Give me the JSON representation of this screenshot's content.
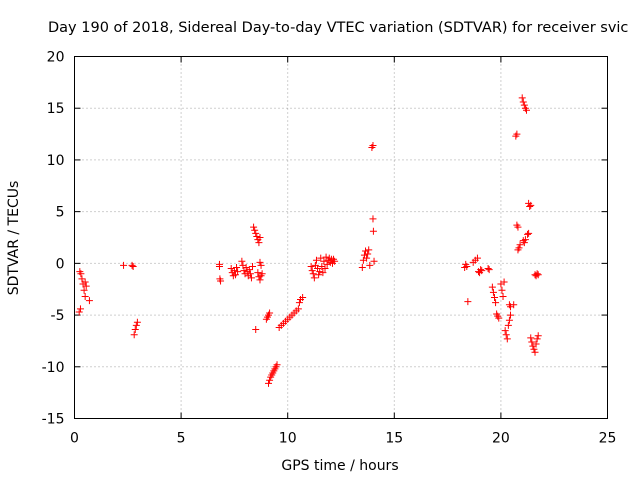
{
  "chart_data": {
    "type": "scatter",
    "title": "Day 190 of 2018, Sidereal Day-to-day VTEC variation (SDTVAR) for receiver svic",
    "xlabel": "GPS time / hours",
    "ylabel": "SDTVAR / TECUs",
    "xlim": [
      0,
      25
    ],
    "ylim": [
      -15,
      20
    ],
    "xticks": [
      0,
      5,
      10,
      15,
      20,
      25
    ],
    "yticks": [
      -15,
      -10,
      -5,
      0,
      5,
      10,
      15,
      20
    ],
    "xtick_labels": [
      "0",
      "5",
      "10",
      "15",
      "20",
      "25"
    ],
    "ytick_labels": [
      "-15",
      "-10",
      "-5",
      "0",
      "5",
      "10",
      "15",
      "20"
    ],
    "grid": true,
    "marker": "+",
    "color": "#ff0000",
    "series": [
      {
        "name": "SDTVAR",
        "tracks": [
          [
            0.25,
            -0.8
          ],
          [
            0.3,
            -1.0
          ],
          [
            0.35,
            -1.5
          ],
          [
            0.4,
            -2.0
          ],
          [
            0.45,
            -2.6
          ],
          [
            0.5,
            -3.2
          ],
          [
            0.22,
            -4.7
          ],
          [
            0.28,
            -4.4
          ],
          [
            0.5,
            -1.8
          ],
          [
            0.55,
            -2.2
          ],
          [
            0.7,
            -3.6
          ],
          [
            2.3,
            -0.2
          ],
          [
            2.7,
            -0.2
          ],
          [
            2.75,
            -0.3
          ],
          [
            2.8,
            -6.9
          ],
          [
            2.85,
            -6.4
          ],
          [
            2.9,
            -6.0
          ],
          [
            2.95,
            -5.7
          ],
          [
            6.8,
            -0.1
          ],
          [
            6.8,
            -0.3
          ],
          [
            6.82,
            -1.5
          ],
          [
            6.85,
            -1.7
          ],
          [
            7.35,
            -0.5
          ],
          [
            7.4,
            -0.9
          ],
          [
            7.45,
            -1.2
          ],
          [
            7.5,
            -0.7
          ],
          [
            7.55,
            -1.1
          ],
          [
            7.6,
            -0.4
          ],
          [
            7.65,
            -0.8
          ],
          [
            7.85,
            0.2
          ],
          [
            7.9,
            -0.2
          ],
          [
            7.95,
            -0.7
          ],
          [
            8.0,
            -1.0
          ],
          [
            8.05,
            -0.4
          ],
          [
            8.1,
            -0.8
          ],
          [
            8.15,
            -1.2
          ],
          [
            8.2,
            -0.6
          ],
          [
            8.25,
            -1.0
          ],
          [
            8.3,
            -1.4
          ],
          [
            8.35,
            -0.3
          ],
          [
            8.4,
            3.5
          ],
          [
            8.45,
            3.2
          ],
          [
            8.5,
            2.9
          ],
          [
            8.55,
            2.6
          ],
          [
            8.6,
            2.3
          ],
          [
            8.65,
            2.0
          ],
          [
            8.7,
            2.5
          ],
          [
            8.5,
            -6.4
          ],
          [
            8.7,
            0.1
          ],
          [
            8.75,
            -0.2
          ],
          [
            8.6,
            -0.9
          ],
          [
            8.65,
            -1.3
          ],
          [
            8.7,
            -1.6
          ],
          [
            8.75,
            -1.2
          ],
          [
            8.8,
            -1.0
          ],
          [
            9.0,
            -5.4
          ],
          [
            9.05,
            -5.2
          ],
          [
            9.1,
            -5.0
          ],
          [
            9.15,
            -4.8
          ],
          [
            9.1,
            -11.6
          ],
          [
            9.15,
            -11.3
          ],
          [
            9.2,
            -11.0
          ],
          [
            9.25,
            -10.8
          ],
          [
            9.3,
            -10.6
          ],
          [
            9.35,
            -10.4
          ],
          [
            9.4,
            -10.2
          ],
          [
            9.45,
            -10.0
          ],
          [
            9.5,
            -9.8
          ],
          [
            9.6,
            -6.2
          ],
          [
            9.7,
            -6.0
          ],
          [
            9.8,
            -5.8
          ],
          [
            9.9,
            -5.6
          ],
          [
            10.0,
            -5.4
          ],
          [
            10.1,
            -5.2
          ],
          [
            10.2,
            -5.0
          ],
          [
            10.3,
            -4.8
          ],
          [
            10.4,
            -4.6
          ],
          [
            10.5,
            -4.4
          ],
          [
            10.55,
            -3.8
          ],
          [
            10.6,
            -3.5
          ],
          [
            10.7,
            -3.3
          ],
          [
            11.1,
            -0.3
          ],
          [
            11.15,
            -0.7
          ],
          [
            11.2,
            -1.0
          ],
          [
            11.25,
            -1.4
          ],
          [
            11.3,
            -0.2
          ],
          [
            11.35,
            0.3
          ],
          [
            11.4,
            -0.5
          ],
          [
            11.45,
            -1.1
          ],
          [
            11.5,
            -0.8
          ],
          [
            11.55,
            0.5
          ],
          [
            11.6,
            -0.3
          ],
          [
            11.65,
            -0.9
          ],
          [
            11.7,
            0.2
          ],
          [
            11.75,
            -0.5
          ],
          [
            11.8,
            0.6
          ],
          [
            11.85,
            -0.1
          ],
          [
            11.9,
            0.3
          ],
          [
            11.95,
            0.5
          ],
          [
            12.0,
            0.1
          ],
          [
            12.05,
            0.4
          ],
          [
            12.1,
            0.0
          ],
          [
            12.15,
            0.4
          ],
          [
            12.2,
            0.2
          ],
          [
            13.5,
            -0.4
          ],
          [
            13.55,
            0.3
          ],
          [
            13.6,
            0.8
          ],
          [
            13.65,
            1.2
          ],
          [
            13.7,
            0.5
          ],
          [
            13.75,
            0.9
          ],
          [
            13.8,
            1.3
          ],
          [
            13.85,
            -0.2
          ],
          [
            13.95,
            11.2
          ],
          [
            14.0,
            11.4
          ],
          [
            14.0,
            4.3
          ],
          [
            14.02,
            3.1
          ],
          [
            14.05,
            0.2
          ],
          [
            18.3,
            -0.4
          ],
          [
            18.35,
            -0.1
          ],
          [
            18.4,
            -0.3
          ],
          [
            18.45,
            -3.7
          ],
          [
            18.7,
            0.1
          ],
          [
            18.8,
            0.3
          ],
          [
            18.9,
            0.5
          ],
          [
            18.95,
            -0.8
          ],
          [
            19.0,
            -0.9
          ],
          [
            19.05,
            -0.6
          ],
          [
            19.1,
            -0.7
          ],
          [
            19.4,
            -0.5
          ],
          [
            19.45,
            -0.6
          ],
          [
            19.6,
            -2.3
          ],
          [
            19.65,
            -2.8
          ],
          [
            19.7,
            -3.3
          ],
          [
            19.75,
            -3.8
          ],
          [
            19.8,
            -4.9
          ],
          [
            19.85,
            -5.1
          ],
          [
            19.9,
            -5.3
          ],
          [
            20.0,
            -2.0
          ],
          [
            20.05,
            -2.6
          ],
          [
            20.1,
            -3.2
          ],
          [
            20.15,
            -1.8
          ],
          [
            20.2,
            -6.5
          ],
          [
            20.25,
            -6.9
          ],
          [
            20.3,
            -7.3
          ],
          [
            20.35,
            -6.0
          ],
          [
            20.4,
            -5.5
          ],
          [
            20.45,
            -5.0
          ],
          [
            20.4,
            -4.0
          ],
          [
            20.45,
            -4.2
          ],
          [
            20.6,
            -4.0
          ],
          [
            20.7,
            12.3
          ],
          [
            20.75,
            12.5
          ],
          [
            20.75,
            3.7
          ],
          [
            20.8,
            3.5
          ],
          [
            20.8,
            1.3
          ],
          [
            20.85,
            1.5
          ],
          [
            20.9,
            1.8
          ],
          [
            21.0,
            16.0
          ],
          [
            21.05,
            15.6
          ],
          [
            21.1,
            15.3
          ],
          [
            21.15,
            15.0
          ],
          [
            21.2,
            14.8
          ],
          [
            21.05,
            2.2
          ],
          [
            21.1,
            2.0
          ],
          [
            21.15,
            2.3
          ],
          [
            21.25,
            2.8
          ],
          [
            21.3,
            2.9
          ],
          [
            21.3,
            5.8
          ],
          [
            21.35,
            5.5
          ],
          [
            21.4,
            5.6
          ],
          [
            21.4,
            -7.2
          ],
          [
            21.45,
            -7.6
          ],
          [
            21.5,
            -8.0
          ],
          [
            21.55,
            -8.3
          ],
          [
            21.6,
            -8.6
          ],
          [
            21.65,
            -7.8
          ],
          [
            21.7,
            -7.3
          ],
          [
            21.75,
            -7.0
          ],
          [
            21.6,
            -1.1
          ],
          [
            21.65,
            -1.2
          ],
          [
            21.7,
            -1.0
          ],
          [
            21.75,
            -1.1
          ]
        ]
      }
    ]
  }
}
